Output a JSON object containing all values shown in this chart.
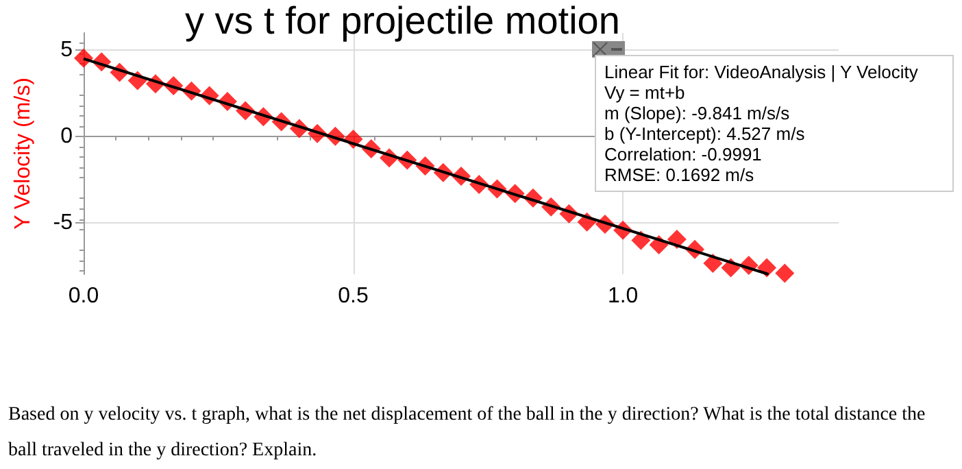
{
  "chart_data": {
    "type": "scatter",
    "title": "y vs t for projectile motion",
    "ylabel": "Y Velocity (m/s)",
    "xlim": [
      0,
      1.4
    ],
    "xticks": [
      {
        "value": 0,
        "label": "0.0"
      },
      {
        "value": 0.5,
        "label": "0.5"
      },
      {
        "value": 1,
        "label": "1.0"
      }
    ],
    "ylim": [
      -8,
      6
    ],
    "yticks": [
      -5,
      0,
      5
    ],
    "grid": true,
    "series": [
      {
        "color": "#ff0000",
        "marker": "diamond",
        "x": [
          0,
          0.0333,
          0.0667,
          0.1,
          0.1333,
          0.1667,
          0.2,
          0.2333,
          0.2667,
          0.3,
          0.3333,
          0.3667,
          0.4,
          0.4333,
          0.4667,
          0.5,
          0.5333,
          0.5667,
          0.6,
          0.6333,
          0.6667,
          0.7,
          0.7333,
          0.7667,
          0.8,
          0.8333,
          0.8667,
          0.9,
          0.9333,
          0.9667,
          1,
          1.0333,
          1.0667,
          1.1,
          1.1333,
          1.1667,
          1.2,
          1.2333,
          1.2667,
          1.3
        ],
        "values": [
          4.54,
          4.32,
          3.71,
          3.24,
          3.05,
          2.94,
          2.63,
          2.36,
          2.02,
          1.49,
          1.14,
          0.85,
          0.45,
          0.16,
          0.0,
          -0.16,
          -0.72,
          -1.25,
          -1.38,
          -1.72,
          -2.1,
          -2.31,
          -2.79,
          -3.05,
          -3.32,
          -3.58,
          -4.09,
          -4.49,
          -4.97,
          -5.1,
          -5.44,
          -6.03,
          -6.29,
          -5.97,
          -6.56,
          -7.36,
          -7.62,
          -7.48,
          -7.62,
          -7.94
        ]
      },
      {
        "type": "line",
        "color": "#000000",
        "marker": "none",
        "line_style": "solid",
        "x": [
          0,
          1.27
        ],
        "values": [
          4.5,
          -8.0
        ]
      }
    ],
    "annotations": [
      "Linear Fit for: VideoAnalysis | Y Velocity",
      "Vy = mt+b",
      "m (Slope): -9.841 m/s/s",
      "b (Y-Intercept): 4.527 m/s",
      "Correlation: -0.9991",
      "RMSE: 0.1692 m/s",
      "Based on y velocity vs. t graph, what is the net displacement of the ball in the y direction? What is the total distance the ball traveled in the y direction? Explain."
    ]
  }
}
